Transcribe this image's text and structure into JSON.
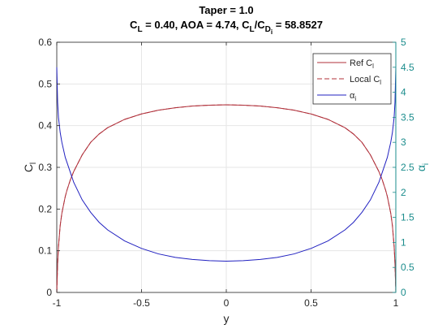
{
  "chart_data": {
    "type": "line",
    "title": {
      "line1": "Taper = 1.0",
      "line2_parts": [
        {
          "text": "C"
        },
        {
          "text": "L",
          "sub": true
        },
        {
          "text": " = 0.40, AOA = 4.74, C"
        },
        {
          "text": "L",
          "sub": true
        },
        {
          "text": "/C"
        },
        {
          "text": "D",
          "sub": true
        },
        {
          "text": "i",
          "subsub": true
        },
        {
          "text": " = 58.8527"
        }
      ]
    },
    "xlabel": "y",
    "ylabel_left": {
      "main": "C",
      "sub": "l"
    },
    "ylabel_right": {
      "main": "α",
      "sub": "i"
    },
    "xlim": [
      -1,
      1
    ],
    "ylim_left": [
      0,
      0.6
    ],
    "ylim_right": [
      0,
      5
    ],
    "x_ticks": [
      -1,
      -0.5,
      0,
      0.5,
      1
    ],
    "x_tick_labels": [
      "-1",
      "-0.5",
      "0",
      "0.5",
      "1"
    ],
    "y_left_ticks": [
      0,
      0.1,
      0.2,
      0.3,
      0.4,
      0.5,
      0.6
    ],
    "y_left_tick_labels": [
      "0",
      "0.1",
      "0.2",
      "0.3",
      "0.4",
      "0.5",
      "0.6"
    ],
    "y_right_ticks": [
      0,
      0.5,
      1,
      1.5,
      2,
      2.5,
      3,
      3.5,
      4,
      4.5,
      5
    ],
    "y_right_tick_labels": [
      "0",
      "0.5",
      "1",
      "1.5",
      "2",
      "2.5",
      "3",
      "3.5",
      "4",
      "4.5",
      "5"
    ],
    "grid": true,
    "legend_position": "top-right",
    "colors": {
      "ref_cl": "#b0303a",
      "local_cl": "#b0303a",
      "alpha_i": "#2020c0",
      "right_axis": "#1a8c8c",
      "grid": "#e6e6e6",
      "axis": "#262626"
    },
    "series": [
      {
        "name": "Ref C",
        "name_sub": "l",
        "axis": "left",
        "style": "solid",
        "x": [
          -1,
          -0.995,
          -0.99,
          -0.98,
          -0.97,
          -0.96,
          -0.95,
          -0.94,
          -0.92,
          -0.9,
          -0.85,
          -0.8,
          -0.75,
          -0.7,
          -0.6,
          -0.5,
          -0.4,
          -0.3,
          -0.2,
          -0.1,
          0,
          0.1,
          0.2,
          0.3,
          0.4,
          0.5,
          0.6,
          0.7,
          0.75,
          0.8,
          0.85,
          0.9,
          0.92,
          0.94,
          0.95,
          0.96,
          0.97,
          0.98,
          0.99,
          0.995,
          1
        ],
        "y": [
          0,
          0.07,
          0.11,
          0.16,
          0.19,
          0.21,
          0.23,
          0.245,
          0.27,
          0.29,
          0.33,
          0.36,
          0.38,
          0.395,
          0.415,
          0.428,
          0.437,
          0.443,
          0.447,
          0.449,
          0.45,
          0.449,
          0.447,
          0.443,
          0.437,
          0.428,
          0.415,
          0.395,
          0.38,
          0.36,
          0.33,
          0.29,
          0.27,
          0.245,
          0.23,
          0.21,
          0.19,
          0.16,
          0.11,
          0.07,
          0
        ]
      },
      {
        "name": "Local C",
        "name_sub": "l",
        "axis": "left",
        "style": "dashed",
        "x": [
          -1,
          -0.995,
          -0.99,
          -0.98,
          -0.97,
          -0.96,
          -0.95,
          -0.94,
          -0.92,
          -0.9,
          -0.85,
          -0.8,
          -0.75,
          -0.7,
          -0.6,
          -0.5,
          -0.4,
          -0.3,
          -0.2,
          -0.1,
          0,
          0.1,
          0.2,
          0.3,
          0.4,
          0.5,
          0.6,
          0.7,
          0.75,
          0.8,
          0.85,
          0.9,
          0.92,
          0.94,
          0.95,
          0.96,
          0.97,
          0.98,
          0.99,
          0.995,
          1
        ],
        "y": [
          0,
          0.07,
          0.11,
          0.16,
          0.19,
          0.21,
          0.23,
          0.245,
          0.27,
          0.29,
          0.33,
          0.36,
          0.38,
          0.395,
          0.415,
          0.428,
          0.437,
          0.443,
          0.447,
          0.449,
          0.45,
          0.449,
          0.447,
          0.443,
          0.437,
          0.428,
          0.415,
          0.395,
          0.38,
          0.36,
          0.33,
          0.29,
          0.27,
          0.245,
          0.23,
          0.21,
          0.19,
          0.16,
          0.11,
          0.07,
          0
        ]
      },
      {
        "name": "α",
        "name_sub": "i",
        "axis": "right",
        "style": "solid",
        "x": [
          -1,
          -0.995,
          -0.99,
          -0.98,
          -0.97,
          -0.96,
          -0.95,
          -0.94,
          -0.92,
          -0.9,
          -0.85,
          -0.8,
          -0.75,
          -0.7,
          -0.6,
          -0.5,
          -0.4,
          -0.3,
          -0.2,
          -0.1,
          0,
          0.1,
          0.2,
          0.3,
          0.4,
          0.5,
          0.6,
          0.7,
          0.75,
          0.8,
          0.85,
          0.9,
          0.92,
          0.94,
          0.95,
          0.96,
          0.97,
          0.98,
          0.99,
          0.995,
          1
        ],
        "y": [
          4.5,
          3.8,
          3.5,
          3.2,
          3.0,
          2.85,
          2.7,
          2.6,
          2.4,
          2.2,
          1.85,
          1.6,
          1.4,
          1.25,
          1.03,
          0.88,
          0.77,
          0.7,
          0.66,
          0.635,
          0.625,
          0.635,
          0.66,
          0.7,
          0.77,
          0.88,
          1.03,
          1.25,
          1.4,
          1.6,
          1.85,
          2.2,
          2.4,
          2.6,
          2.7,
          2.85,
          3.0,
          3.2,
          3.5,
          3.8,
          4.5
        ]
      }
    ]
  }
}
